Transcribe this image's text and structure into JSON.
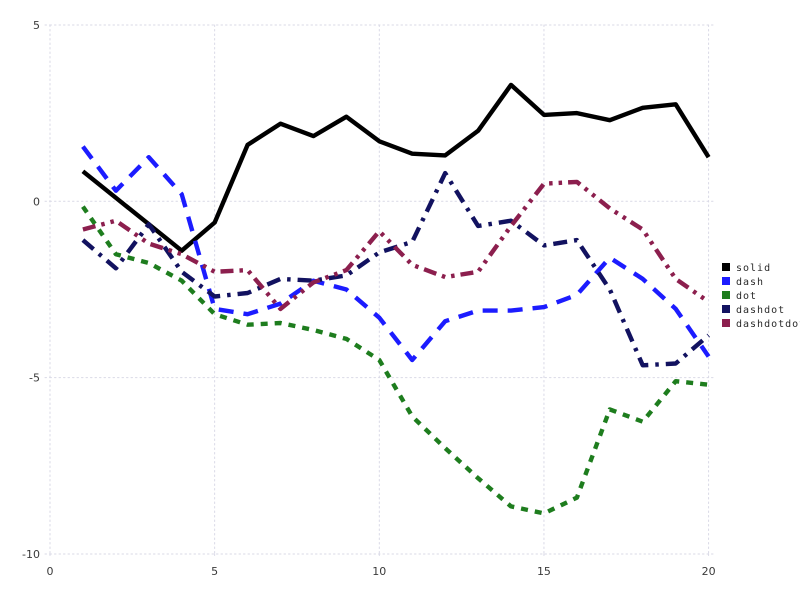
{
  "chart_data": {
    "type": "line",
    "title": "",
    "xlabel": "",
    "ylabel": "",
    "xlim": [
      0,
      20.6
    ],
    "ylim": [
      -10.5,
      5.5
    ],
    "x_ticks": [
      0,
      5,
      10,
      15,
      20
    ],
    "x_tick_labels": [
      "0",
      "5",
      "10",
      "15",
      "20"
    ],
    "y_ticks": [
      5,
      0,
      -5,
      -10
    ],
    "y_tick_labels": [
      "5",
      "0",
      "-5",
      "-10"
    ],
    "grid": true,
    "legend_position": "right",
    "x": [
      1,
      2,
      3,
      4,
      5,
      6,
      7,
      8,
      9,
      10,
      11,
      12,
      13,
      14,
      15,
      16,
      17,
      18,
      19,
      20
    ],
    "series": [
      {
        "name": "solid",
        "color": "#000000",
        "line_style": "solid",
        "values": [
          0.85,
          0.1,
          -0.65,
          -1.4,
          -0.6,
          1.6,
          2.2,
          1.85,
          2.4,
          1.7,
          1.35,
          1.3,
          2.0,
          3.3,
          2.45,
          2.5,
          2.3,
          2.65,
          2.75,
          1.25
        ]
      },
      {
        "name": "dash",
        "color": "#1c1cff",
        "line_style": "dash",
        "values": [
          1.55,
          0.3,
          1.25,
          0.2,
          -3.05,
          -3.2,
          -2.9,
          -2.25,
          -2.5,
          -3.3,
          -4.5,
          -3.4,
          -3.1,
          -3.1,
          -3.0,
          -2.65,
          -1.6,
          -2.2,
          -3.05,
          -4.4
        ]
      },
      {
        "name": "dot",
        "color": "#1e7d1e",
        "line_style": "dot",
        "values": [
          -0.15,
          -1.5,
          -1.75,
          -2.25,
          -3.2,
          -3.5,
          -3.45,
          -3.65,
          -3.9,
          -4.5,
          -6.1,
          -7.0,
          -7.85,
          -8.65,
          -8.85,
          -8.4,
          -5.9,
          -6.25,
          -5.1,
          -5.2
        ]
      },
      {
        "name": "dashdot",
        "color": "#121260",
        "line_style": "dashdot",
        "values": [
          -1.1,
          -1.9,
          -0.65,
          -2.0,
          -2.7,
          -2.6,
          -2.2,
          -2.25,
          -2.1,
          -1.45,
          -1.15,
          0.8,
          -0.7,
          -0.55,
          -1.25,
          -1.1,
          -2.5,
          -4.65,
          -4.6,
          -3.8
        ]
      },
      {
        "name": "dashdotdot",
        "color": "#8c1f4e",
        "line_style": "dashdotdot",
        "values": [
          -0.8,
          -0.55,
          -1.2,
          -1.5,
          -2.0,
          -1.95,
          -3.05,
          -2.3,
          -1.95,
          -0.85,
          -1.8,
          -2.15,
          -2.0,
          -0.7,
          0.5,
          0.55,
          -0.2,
          -0.8,
          -2.2,
          -2.85
        ]
      }
    ],
    "legend_entries": [
      "solid",
      "dash",
      "dot",
      "dashdot",
      "dashdotdot"
    ]
  },
  "style": {
    "background_color": "#ffffff",
    "grid_color": "#d9d9e6",
    "tick_label_color": "#3a3a3a",
    "legend_text_color": "#2a2a2a"
  }
}
